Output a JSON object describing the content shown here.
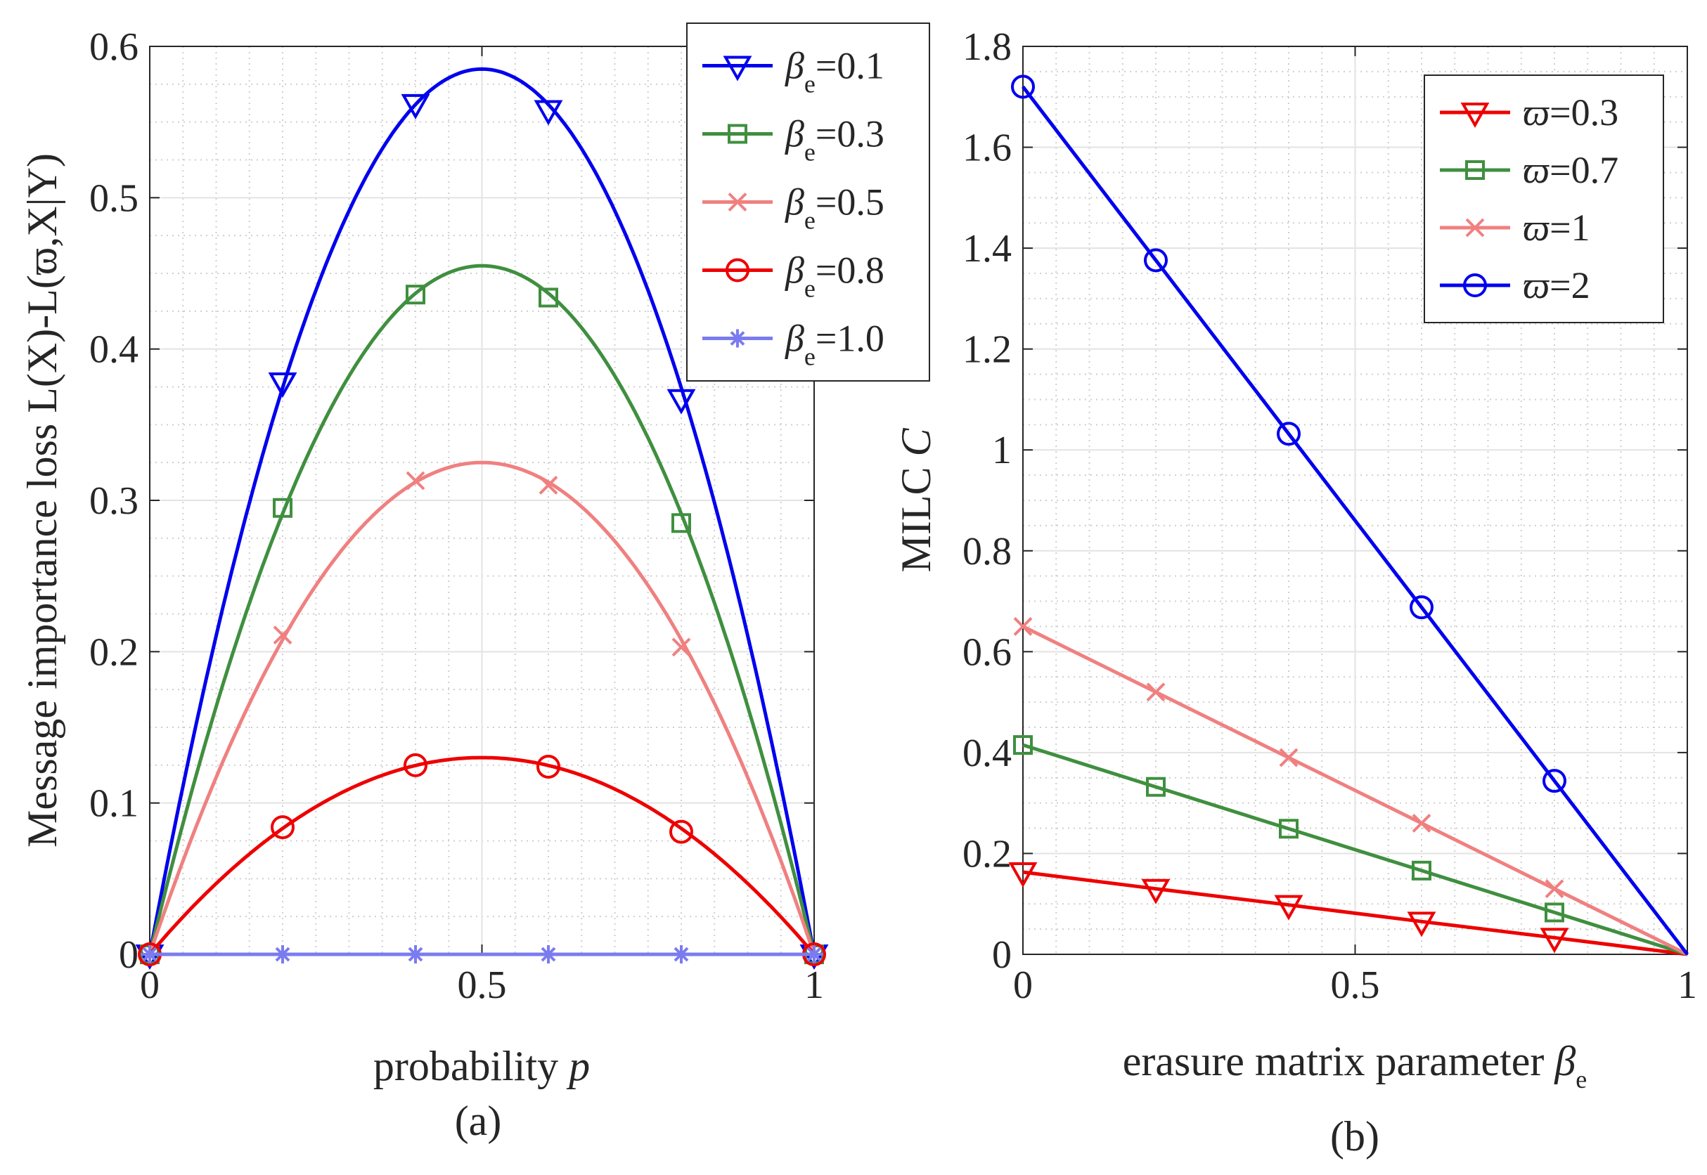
{
  "chart_data": [
    {
      "id": "a",
      "type": "line",
      "caption": "(a)",
      "xlabel": "probability p",
      "xlabel_text": "probability ",
      "xlabel_var": "p",
      "ylabel": "Message importance loss L(X)-L(ϖ,X|Y)",
      "xlim": [
        0,
        1
      ],
      "ylim": [
        0,
        0.6
      ],
      "xticks": [
        0,
        0.5,
        1
      ],
      "xtick_labels": [
        "0",
        "0.5",
        "1"
      ],
      "yticks": [
        0,
        0.1,
        0.2,
        0.3,
        0.4,
        0.5,
        0.6
      ],
      "ytick_labels": [
        "0",
        "0.1",
        "0.2",
        "0.3",
        "0.4",
        "0.5",
        "0.6"
      ],
      "grid": true,
      "legend_position": "top-right",
      "marker_x": [
        0,
        0.2,
        0.4,
        0.6,
        0.8,
        1
      ],
      "series": [
        {
          "name": "βe=0.1",
          "symbol": "β",
          "sub": "e",
          "value": "=0.1",
          "color": "#0000ee",
          "marker": "triangle-down",
          "peak": 0.585,
          "markers": [
            0,
            0.378,
            0.562,
            0.558,
            0.367,
            0
          ]
        },
        {
          "name": "βe=0.3",
          "symbol": "β",
          "sub": "e",
          "value": "=0.3",
          "color": "#3f8f3f",
          "marker": "square",
          "peak": 0.455,
          "markers": [
            0,
            0.295,
            0.436,
            0.434,
            0.285,
            0
          ]
        },
        {
          "name": "βe=0.5",
          "symbol": "β",
          "sub": "e",
          "value": "=0.5",
          "color": "#f08080",
          "marker": "x",
          "peak": 0.325,
          "markers": [
            0,
            0.211,
            0.313,
            0.31,
            0.203,
            0
          ]
        },
        {
          "name": "βe=0.8",
          "symbol": "β",
          "sub": "e",
          "value": "=0.8",
          "color": "#ee0000",
          "marker": "circle",
          "peak": 0.13,
          "markers": [
            0,
            0.084,
            0.125,
            0.124,
            0.081,
            0
          ]
        },
        {
          "name": "βe=1.0",
          "symbol": "β",
          "sub": "e",
          "value": "=1.0",
          "color": "#7b7bf0",
          "marker": "asterisk",
          "peak": 0,
          "markers": [
            0,
            0,
            0,
            0,
            0,
            0
          ]
        }
      ]
    },
    {
      "id": "b",
      "type": "line",
      "caption": "(b)",
      "xlabel": "erasure matrix parameter βe",
      "xlabel_text": "erasure matrix parameter ",
      "xlabel_sym": "β",
      "xlabel_sub": "e",
      "ylabel": "MILC C",
      "ylabel_text": "MILC ",
      "ylabel_var": "C",
      "xlim": [
        0,
        1
      ],
      "ylim": [
        0,
        1.8
      ],
      "xticks": [
        0,
        0.5,
        1
      ],
      "xtick_labels": [
        "0",
        "0.5",
        "1"
      ],
      "yticks": [
        0,
        0.2,
        0.4,
        0.6,
        0.8,
        1,
        1.2,
        1.4,
        1.6,
        1.8
      ],
      "ytick_labels": [
        "0",
        "0.2",
        "0.4",
        "0.6",
        "0.8",
        "1",
        "1.2",
        "1.4",
        "1.6",
        "1.8"
      ],
      "grid": true,
      "legend_position": "top-right",
      "x": [
        0,
        0.2,
        0.4,
        0.6,
        0.8,
        1
      ],
      "series": [
        {
          "name": "ϖ=0.3",
          "symbol": "ϖ",
          "value": "=0.3",
          "color": "#ee0000",
          "marker": "triangle-down",
          "values": [
            0.163,
            0.13,
            0.098,
            0.065,
            0.033,
            0
          ]
        },
        {
          "name": "ϖ=0.7",
          "symbol": "ϖ",
          "value": "=0.7",
          "color": "#3f8f3f",
          "marker": "square",
          "values": [
            0.415,
            0.332,
            0.249,
            0.166,
            0.083,
            0
          ]
        },
        {
          "name": "ϖ=1",
          "symbol": "ϖ",
          "value": "=1",
          "color": "#f08080",
          "marker": "x",
          "values": [
            0.65,
            0.52,
            0.39,
            0.26,
            0.13,
            0
          ]
        },
        {
          "name": "ϖ=2",
          "symbol": "ϖ",
          "value": "=2",
          "color": "#0000ee",
          "marker": "circle",
          "values": [
            1.72,
            1.376,
            1.032,
            0.688,
            0.344,
            0
          ]
        }
      ]
    }
  ]
}
